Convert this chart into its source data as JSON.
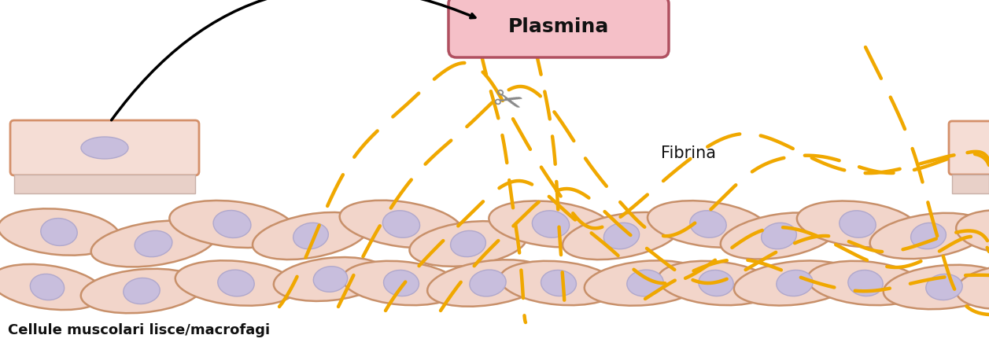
{
  "bg_color": "#ffffff",
  "cell_body_color": "#f2d5ca",
  "cell_border_color": "#c8906a",
  "nucleus_color": "#c8bedd",
  "nucleus_border_color": "#b0a8cc",
  "rect_cell_color": "#f5ddd5",
  "rect_cell_border": "#d4906a",
  "rect_bar_color": "#e8d0c8",
  "rect_bar_border": "#c8b0a8",
  "plasmina_bg_top": "#f5c0c8",
  "plasmina_bg_bot": "#e8a0b0",
  "plasmina_border": "#b05060",
  "plasmina_text": "Plasmina",
  "fibrina_text": "Fibrina",
  "bottom_label": "Cellule muscolari lisce/macrofagi",
  "fibrin_color": "#f0a800",
  "scissors_color": "#888888",
  "arrow_color": "#000000",
  "label_fontsize": 13,
  "cells": [
    [
      75,
      295,
      155,
      58,
      -5
    ],
    [
      195,
      310,
      160,
      55,
      8
    ],
    [
      60,
      365,
      145,
      55,
      -8
    ],
    [
      180,
      370,
      155,
      55,
      5
    ],
    [
      295,
      285,
      160,
      58,
      -6
    ],
    [
      395,
      300,
      150,
      55,
      10
    ],
    [
      300,
      360,
      155,
      56,
      -5
    ],
    [
      420,
      355,
      145,
      54,
      6
    ],
    [
      510,
      285,
      158,
      57,
      -8
    ],
    [
      595,
      310,
      150,
      55,
      7
    ],
    [
      510,
      360,
      150,
      55,
      -5
    ],
    [
      620,
      360,
      155,
      56,
      8
    ],
    [
      700,
      285,
      158,
      57,
      -6
    ],
    [
      790,
      300,
      152,
      55,
      10
    ],
    [
      710,
      360,
      150,
      55,
      -5
    ],
    [
      820,
      360,
      155,
      56,
      5
    ],
    [
      900,
      285,
      155,
      57,
      -7
    ],
    [
      990,
      300,
      150,
      55,
      9
    ],
    [
      910,
      360,
      148,
      55,
      -5
    ],
    [
      1010,
      360,
      155,
      55,
      6
    ],
    [
      1090,
      285,
      155,
      57,
      -6
    ],
    [
      1180,
      300,
      150,
      55,
      8
    ],
    [
      1100,
      360,
      148,
      55,
      -5
    ],
    [
      1200,
      365,
      155,
      55,
      5
    ],
    [
      1280,
      295,
      130,
      55,
      -5
    ],
    [
      1280,
      365,
      130,
      55,
      5
    ]
  ]
}
